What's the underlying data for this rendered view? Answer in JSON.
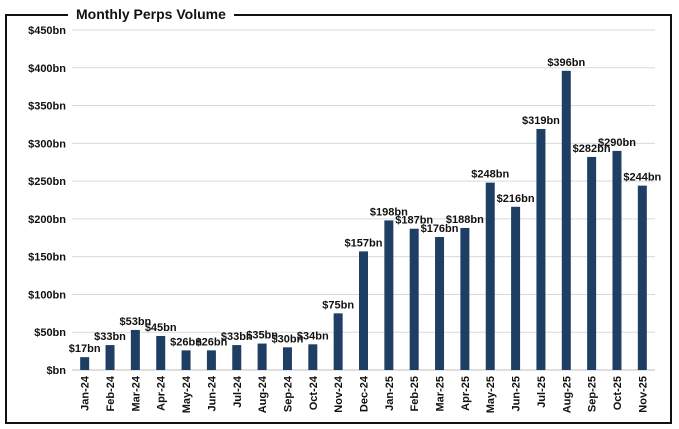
{
  "chart_data": {
    "type": "bar",
    "title": "Monthly Perps Volume",
    "categories": [
      "Jan-24",
      "Feb-24",
      "Mar-24",
      "Apr-24",
      "May-24",
      "Jun-24",
      "Jul-24",
      "Aug-24",
      "Sep-24",
      "Oct-24",
      "Nov-24",
      "Dec-24",
      "Jan-25",
      "Feb-25",
      "Mar-25",
      "Apr-25",
      "May-25",
      "Jun-25",
      "Jul-25",
      "Aug-25",
      "Sep-25",
      "Oct-25",
      "Nov-25"
    ],
    "values": [
      17,
      33,
      53,
      45,
      26,
      26,
      33,
      35,
      30,
      34,
      75,
      157,
      198,
      187,
      176,
      188,
      248,
      216,
      319,
      396,
      282,
      290,
      244
    ],
    "data_labels": [
      "$17bn",
      "$33bn",
      "$53bn",
      "$45bn",
      "$26bn",
      "$26bn",
      "$33bn",
      "$35bn",
      "$30bn",
      "$34bn",
      "$75bn",
      "$157bn",
      "$198bn",
      "$187bn",
      "$176bn",
      "$188bn",
      "$248bn",
      "$216bn",
      "$319bn",
      "$396bn",
      "$282bn",
      "$290bn",
      "$244bn"
    ],
    "y_ticks": [
      0,
      50,
      100,
      150,
      200,
      250,
      300,
      350,
      400,
      450
    ],
    "y_tick_labels": [
      "$bn",
      "$50bn",
      "$100bn",
      "$150bn",
      "$200bn",
      "$250bn",
      "$300bn",
      "$350bn",
      "$400bn",
      "$450bn"
    ],
    "ylim": [
      0,
      450
    ],
    "grid": "horizontal",
    "xlabel": "",
    "ylabel": "",
    "colors": {
      "bar": "#1f3e64",
      "grid": "#d9d9d9",
      "axis": "#bfbfbf",
      "text": "#111111"
    }
  }
}
